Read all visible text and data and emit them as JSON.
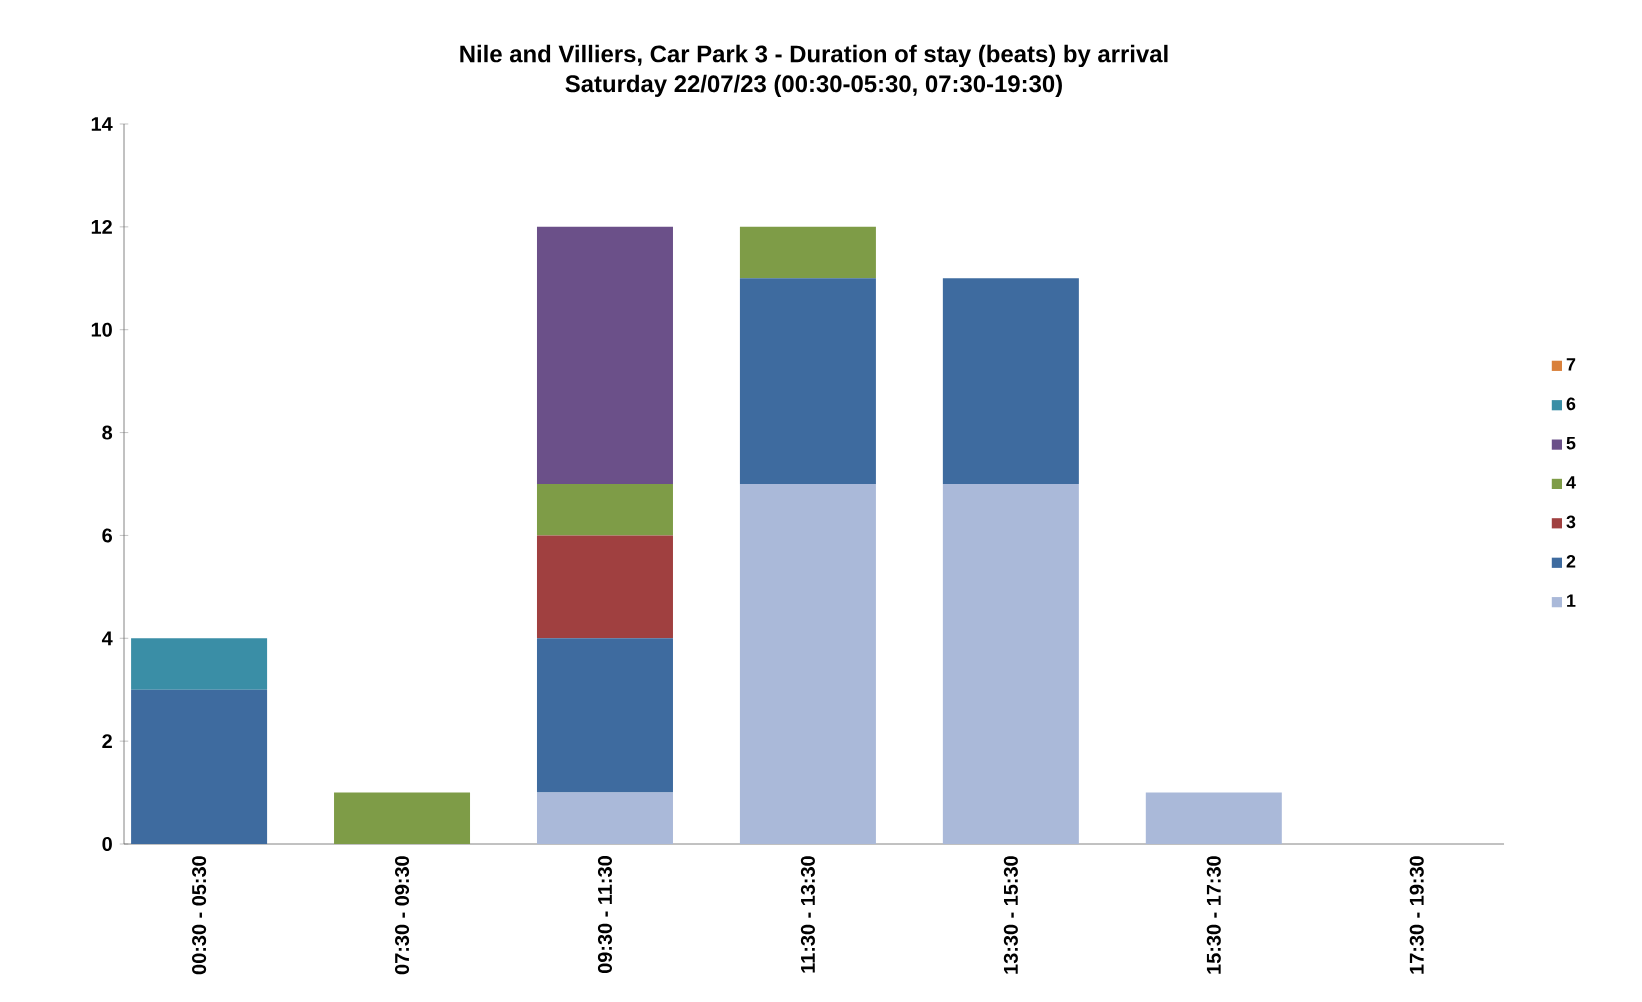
{
  "chart_data": {
    "type": "bar",
    "stacked": true,
    "title": "Nile and Villiers, Car Park 3 - Duration of stay (beats) by arrival",
    "subtitle": "Saturday 22/07/23 (00:30-05:30, 07:30-19:30)",
    "categories": [
      "00:30 - 05:30",
      "07:30 - 09:30",
      "09:30 - 11:30",
      "11:30 - 13:30",
      "13:30 - 15:30",
      "15:30 - 17:30",
      "17:30 - 19:30"
    ],
    "series": [
      {
        "name": "1",
        "color": "#aab9d9",
        "values": [
          0,
          0,
          1,
          7,
          7,
          1,
          0
        ]
      },
      {
        "name": "2",
        "color": "#3e6b9f",
        "values": [
          3,
          0,
          3,
          4,
          4,
          0,
          0
        ]
      },
      {
        "name": "3",
        "color": "#a04040",
        "values": [
          0,
          0,
          2,
          0,
          0,
          0,
          0
        ]
      },
      {
        "name": "4",
        "color": "#7e9c47",
        "values": [
          0,
          1,
          1,
          1,
          0,
          0,
          0
        ]
      },
      {
        "name": "5",
        "color": "#6b5089",
        "values": [
          0,
          0,
          5,
          0,
          0,
          0,
          0
        ]
      },
      {
        "name": "6",
        "color": "#3a8ea6",
        "values": [
          1,
          0,
          0,
          0,
          0,
          0,
          0
        ]
      },
      {
        "name": "7",
        "color": "#d9803a",
        "values": [
          0,
          0,
          0,
          0,
          0,
          0,
          0
        ]
      }
    ],
    "ylim": [
      0,
      14
    ],
    "yticks": [
      0,
      2,
      4,
      6,
      8,
      10,
      12,
      14
    ],
    "legend": "right"
  }
}
